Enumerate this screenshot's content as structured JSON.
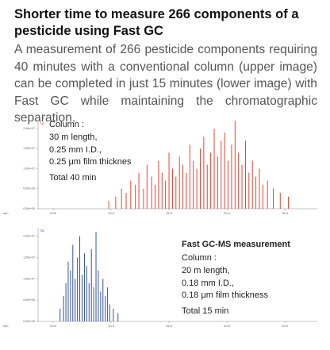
{
  "header": {
    "title": "Shorter time to measure 266 components of a pesticide using Fast GC",
    "body": "A measurement of 266 pesticide components requiring 40 minutes with a conventional column (upper image) can be completed in just 15 minutes (lower image) with Fast GC while maintaining the chromatographic separation."
  },
  "chart_data": [
    {
      "type": "stick",
      "legend": "TIC",
      "color": "#e8301c",
      "xlabel": "min",
      "xlim": [
        3.7,
        27.8
      ],
      "xticks": [
        {
          "value": 5,
          "label": "5.00"
        },
        {
          "value": 10,
          "label": "10.0"
        },
        {
          "value": 15,
          "label": "15.0"
        },
        {
          "value": 20,
          "label": "20.0"
        },
        {
          "value": 25,
          "label": "25.0"
        }
      ],
      "ylim": [
        0,
        22000000
      ],
      "yticks": [
        {
          "value": 0,
          "label": "0.00e+00"
        },
        {
          "value": 5000000,
          "label": "5.00e+06"
        },
        {
          "value": 10000000,
          "label": "1.00e+07"
        },
        {
          "value": 15000000,
          "label": "1.50e+07"
        },
        {
          "value": 20000000,
          "label": "2.00e+07"
        }
      ],
      "annotations": [
        "Column :",
        "30 m length,",
        "0.25 mm I.D.,",
        "0.25 μm film thicknes",
        "Total 40 min"
      ],
      "x": [
        9.8,
        10.4,
        10.9,
        11.3,
        11.7,
        12.1,
        12.4,
        12.8,
        13.1,
        13.5,
        13.8,
        14.1,
        14.4,
        14.7,
        15.0,
        15.3,
        15.6,
        15.9,
        16.2,
        16.5,
        16.8,
        17.1,
        17.4,
        17.7,
        18.0,
        18.3,
        18.6,
        18.9,
        19.2,
        19.5,
        19.8,
        20.1,
        20.4,
        20.7,
        21.0,
        21.3,
        21.6,
        21.9,
        22.2,
        22.5,
        22.8,
        23.1,
        23.5,
        24.0,
        24.6,
        25.3
      ],
      "values": [
        2000000,
        3000000,
        5000000,
        4000000,
        7000000,
        6000000,
        9000000,
        5000000,
        11000000,
        8000000,
        6000000,
        12000000,
        9000000,
        7000000,
        14000000,
        10000000,
        8000000,
        13000000,
        11000000,
        9000000,
        16000000,
        12000000,
        10000000,
        15000000,
        18000000,
        11000000,
        14000000,
        20000000,
        13000000,
        17000000,
        19000000,
        12000000,
        16000000,
        22000000,
        14000000,
        11000000,
        17000000,
        9000000,
        12000000,
        8000000,
        10000000,
        6000000,
        7000000,
        5000000,
        4000000,
        3000000
      ]
    },
    {
      "type": "stick",
      "legend": "TIC",
      "color": "#1f3f9a",
      "xlabel": "min",
      "xlim": [
        3.7,
        27.8
      ],
      "xticks": [
        {
          "value": 5,
          "label": "5.00"
        },
        {
          "value": 10,
          "label": "10.0"
        },
        {
          "value": 15,
          "label": "15.0"
        },
        {
          "value": 20,
          "label": "20.0"
        },
        {
          "value": 25,
          "label": "25.0"
        }
      ],
      "ylim": [
        0,
        22000000
      ],
      "yticks": [
        {
          "value": 0,
          "label": "0.00e+00"
        },
        {
          "value": 5000000,
          "label": "5.00e+06"
        },
        {
          "value": 10000000,
          "label": "1.00e+07"
        },
        {
          "value": 15000000,
          "label": "1.50e+07"
        },
        {
          "value": 20000000,
          "label": "2.00e+07"
        }
      ],
      "annotations": [
        "Fast GC-MS measurement",
        "Column :",
        "20 m length,",
        "0.18 mm I.D.,",
        "0.18 μm film thickness",
        "Total 15 min"
      ],
      "x": [
        5.6,
        5.9,
        6.1,
        6.3,
        6.5,
        6.7,
        6.9,
        7.1,
        7.3,
        7.5,
        7.7,
        7.9,
        8.1,
        8.3,
        8.5,
        8.7,
        8.9,
        9.1,
        9.3,
        9.5,
        9.7,
        9.9,
        10.2,
        10.6
      ],
      "values": [
        3000000,
        6000000,
        9000000,
        14000000,
        12000000,
        18000000,
        10000000,
        15000000,
        20000000,
        11000000,
        16000000,
        13000000,
        9000000,
        17000000,
        8000000,
        21000000,
        12000000,
        7000000,
        10000000,
        6000000,
        8000000,
        4000000,
        3000000,
        2000000
      ]
    }
  ]
}
